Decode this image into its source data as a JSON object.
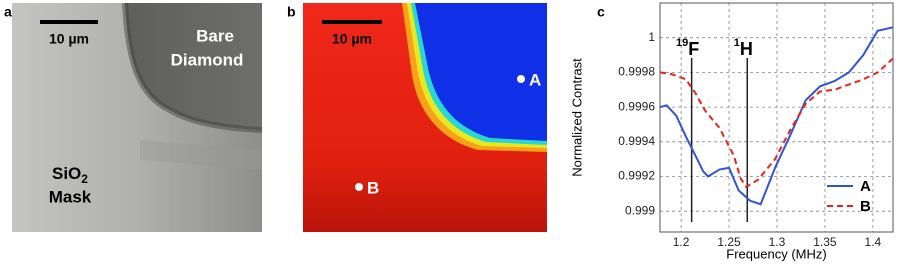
{
  "panels": [
    {
      "label": "a",
      "scale_bar": "10 µm",
      "region_top": [
        "Bare",
        "Diamond"
      ],
      "region_bottom": [
        "SiO",
        "2",
        "Mask"
      ]
    },
    {
      "label": "b",
      "scale_bar": "10 µm",
      "points": [
        "A",
        "B"
      ]
    }
  ],
  "chart_data": {
    "type": "line",
    "panel_label": "c",
    "x_label": "Frequency (MHz)",
    "y_label": "Normalized Contrast",
    "xlim": [
      1.178,
      1.421
    ],
    "ylim": [
      0.99888,
      1.0002
    ],
    "xticks": [
      1.2,
      1.25,
      1.3,
      1.35,
      1.4
    ],
    "yticks": [
      0.999,
      0.9992,
      0.9994,
      0.9996,
      0.9998,
      1
    ],
    "grid": true,
    "legend": "lower right",
    "annotations": [
      {
        "x": 1.211,
        "sup": "19",
        "text": "F"
      },
      {
        "x": 1.269,
        "sup": "1",
        "text": "H"
      }
    ],
    "series": [
      {
        "name": "A",
        "color": "#2f55d4",
        "dash": false,
        "x": [
          1.178,
          1.185,
          1.195,
          1.205,
          1.215,
          1.223,
          1.228,
          1.24,
          1.25,
          1.26,
          1.272,
          1.283,
          1.298,
          1.314,
          1.33,
          1.345,
          1.36,
          1.375,
          1.39,
          1.405,
          1.421
        ],
        "values": [
          0.9996,
          0.99961,
          0.99955,
          0.99943,
          0.99932,
          0.99923,
          0.9992,
          0.99924,
          0.99925,
          0.99912,
          0.99906,
          0.99904,
          0.99925,
          0.99944,
          0.99964,
          0.99972,
          0.99975,
          0.9998,
          0.9999,
          1.00004,
          1.00006
        ]
      },
      {
        "name": "B",
        "color": "#e8231c",
        "dash": true,
        "x": [
          1.178,
          1.19,
          1.205,
          1.215,
          1.225,
          1.24,
          1.255,
          1.262,
          1.268,
          1.28,
          1.298,
          1.314,
          1.33,
          1.345,
          1.36,
          1.375,
          1.39,
          1.405,
          1.421
        ],
        "values": [
          0.9998,
          0.99979,
          0.99976,
          0.99968,
          0.99958,
          0.99948,
          0.99932,
          0.99919,
          0.99914,
          0.99918,
          0.9993,
          0.99947,
          0.99962,
          0.99969,
          0.9997,
          0.99973,
          0.99976,
          0.9998,
          0.99988
        ]
      }
    ]
  }
}
